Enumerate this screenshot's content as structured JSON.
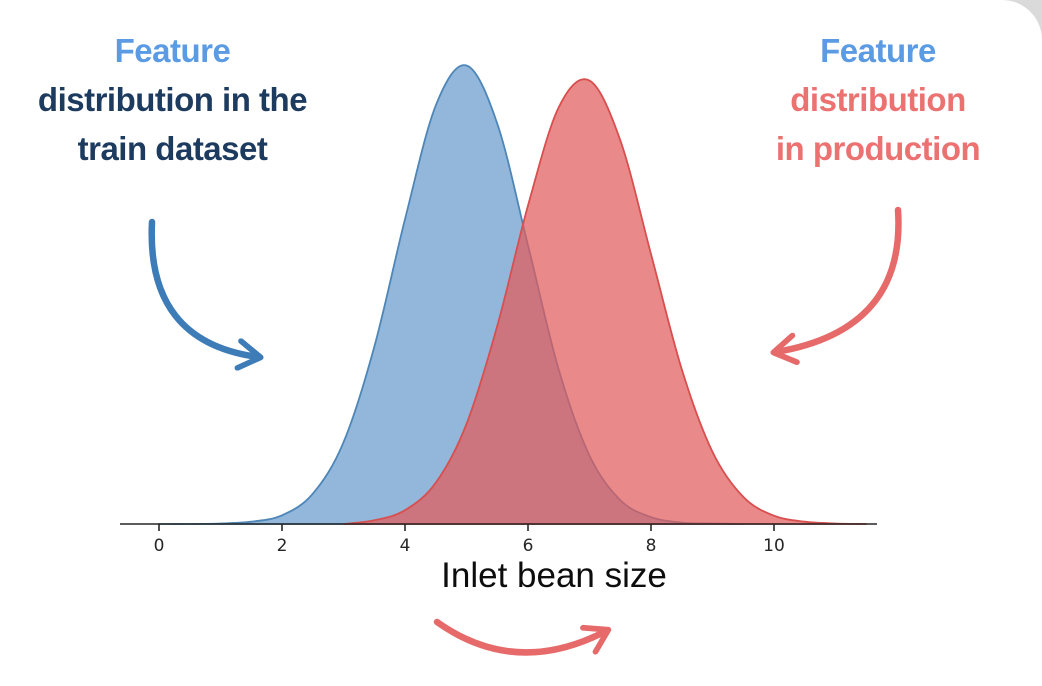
{
  "colors": {
    "accent_blue": "#5B9BE3",
    "navy": "#1D3A5F",
    "coral": "#EC7272",
    "arrow_blue": "#3E7CB8",
    "arrow_red": "#E66A6A",
    "axis": "#262626",
    "tick_label": "#262626",
    "xlabel": "#0D0D0D",
    "corner": "#DADADA"
  },
  "annotations": {
    "train": {
      "accent": "Feature",
      "line2": "distribution in the",
      "line3": "train dataset"
    },
    "production": {
      "accent": "Feature",
      "line2": "distribution",
      "line3": "in production"
    }
  },
  "chart_data": {
    "type": "area",
    "subtype": "kde-density",
    "title": "",
    "xlabel": "Inlet bean size",
    "ylabel": "",
    "xticks": [
      0,
      2,
      4,
      6,
      8,
      10
    ],
    "xlim": [
      -0.6,
      11.6
    ],
    "ylim": [
      0,
      1.08
    ],
    "grid": false,
    "legend_position": "none (series labeled via callout annotations)",
    "series": [
      {
        "name": "Feature distribution in the train dataset",
        "key": "train",
        "color": "#4E86B8",
        "fill": "#6D9FCE",
        "fill_opacity": 0.75,
        "shape": "gaussian-kde",
        "mean": 4.95,
        "std": 1.05,
        "peak_density": 1.0,
        "x": [
          0,
          0.5,
          1,
          1.5,
          2,
          2.5,
          3,
          3.5,
          4,
          4.5,
          5,
          5.5,
          6,
          6.5,
          7,
          7.5,
          8,
          8.5,
          9,
          9.5
        ],
        "y": [
          0,
          0,
          0.001,
          0.005,
          0.019,
          0.066,
          0.178,
          0.386,
          0.664,
          0.912,
          0.999,
          0.872,
          0.607,
          0.336,
          0.149,
          0.052,
          0.015,
          0.003,
          0.001,
          0
        ]
      },
      {
        "name": "Feature distribution in production",
        "key": "production",
        "color": "#D84F4F",
        "fill": "#E25B5B",
        "fill_opacity": 0.72,
        "shape": "gaussian-kde",
        "mean": 6.9,
        "std": 1.1,
        "peak_density": 0.97,
        "x": [
          3,
          3.5,
          4,
          4.5,
          5,
          5.5,
          6,
          6.5,
          7,
          7.5,
          8,
          8.5,
          9,
          9.5,
          10,
          10.5,
          11,
          11.5
        ],
        "y": [
          0,
          0.008,
          0.03,
          0.09,
          0.218,
          0.432,
          0.694,
          0.908,
          0.966,
          0.836,
          0.588,
          0.337,
          0.157,
          0.059,
          0.018,
          0.005,
          0.001,
          0
        ]
      }
    ]
  }
}
